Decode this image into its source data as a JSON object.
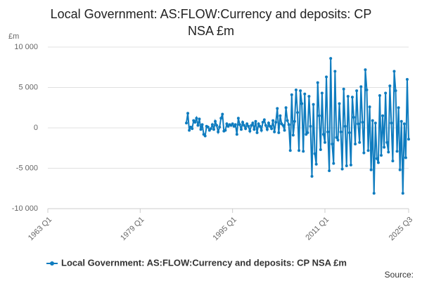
{
  "chart_data": {
    "type": "line",
    "title": "Local Government: AS:FLOW:Currency and deposits: CP NSA £m",
    "y_label": "£m",
    "source": "Source:",
    "categories": [
      "1963 Q1",
      null,
      null,
      null,
      null,
      null,
      null,
      null,
      null,
      null,
      null,
      null,
      null,
      null,
      null,
      null,
      null,
      null,
      null,
      null,
      null,
      null,
      null,
      null,
      null,
      null,
      null,
      null,
      null,
      null,
      null,
      null,
      null,
      null,
      null,
      null,
      null,
      null,
      null,
      null,
      null,
      null,
      null,
      null,
      null,
      null,
      null,
      null,
      null,
      null,
      null,
      null,
      null,
      null,
      null,
      null,
      null,
      null,
      null,
      null,
      null,
      null,
      null,
      null,
      "1979 Q1",
      null,
      null,
      null,
      null,
      null,
      null,
      null,
      null,
      null,
      null,
      null,
      null,
      null,
      null,
      null,
      null,
      null,
      null,
      null,
      null,
      null,
      null,
      null,
      null,
      null,
      null,
      null,
      null,
      null,
      null,
      null,
      null,
      null,
      null,
      null,
      null,
      null,
      null,
      null,
      null,
      null,
      null,
      null,
      null,
      null,
      null,
      null,
      null,
      null,
      null,
      null,
      null,
      null,
      null,
      null,
      null,
      null,
      null,
      null,
      null,
      null,
      null,
      null,
      "1995 Q1",
      null,
      null,
      null,
      null,
      null,
      null,
      null,
      null,
      null,
      null,
      null,
      null,
      null,
      null,
      null,
      null,
      null,
      null,
      null,
      null,
      null,
      null,
      null,
      null,
      null,
      null,
      null,
      null,
      null,
      null,
      null,
      null,
      null,
      null,
      null,
      null,
      null,
      null,
      null,
      null,
      null,
      null,
      null,
      null,
      null,
      null,
      null,
      null,
      null,
      null,
      null,
      null,
      null,
      null,
      null,
      null,
      null,
      null,
      null,
      null,
      null,
      null,
      null,
      "2011 Q1",
      null,
      null,
      null,
      null,
      null,
      null,
      null,
      null,
      null,
      null,
      null,
      null,
      null,
      null,
      null,
      null,
      null,
      null,
      null,
      null,
      null,
      null,
      null,
      null,
      null,
      null,
      null,
      null,
      null,
      null,
      null,
      null,
      null,
      null,
      null,
      null,
      null,
      null,
      null,
      null,
      null,
      null,
      null,
      null,
      null,
      null,
      null,
      null,
      null,
      null,
      null,
      null,
      null,
      null,
      null,
      null,
      null,
      "2025 Q3"
    ],
    "series": [
      {
        "name": "Local Government: AS:FLOW:Currency and deposits: CP NSA £m",
        "color": "#0f7cbf",
        "values": [
          null,
          null,
          null,
          null,
          null,
          null,
          null,
          null,
          null,
          null,
          null,
          null,
          null,
          null,
          null,
          null,
          null,
          null,
          null,
          null,
          null,
          null,
          null,
          null,
          null,
          null,
          null,
          null,
          null,
          null,
          null,
          null,
          null,
          null,
          null,
          null,
          null,
          null,
          null,
          null,
          null,
          null,
          null,
          null,
          null,
          null,
          null,
          null,
          null,
          null,
          null,
          null,
          null,
          null,
          null,
          null,
          null,
          null,
          null,
          null,
          null,
          null,
          null,
          null,
          null,
          null,
          null,
          null,
          null,
          null,
          null,
          null,
          null,
          null,
          null,
          null,
          null,
          null,
          null,
          null,
          null,
          null,
          null,
          null,
          null,
          null,
          null,
          null,
          null,
          null,
          null,
          null,
          null,
          null,
          null,
          null,
          600,
          1800,
          -300,
          100,
          -100,
          900,
          700,
          1200,
          300,
          1100,
          -200,
          400,
          -800,
          -1000,
          200,
          100,
          -300,
          -100,
          400,
          -200,
          800,
          300,
          -500,
          100,
          1200,
          1700,
          -400,
          -300,
          500,
          200,
          400,
          300,
          500,
          200,
          400,
          -800,
          1200,
          400,
          -200,
          700,
          300,
          -100,
          500,
          200,
          -400,
          300,
          600,
          -200,
          800,
          -600,
          500,
          200,
          -300,
          700,
          1000,
          300,
          -200,
          600,
          200,
          -100,
          900,
          -500,
          700,
          2400,
          -600,
          1500,
          500,
          300,
          -300,
          2500,
          900,
          400,
          -2800,
          4100,
          -900,
          800,
          4700,
          1900,
          -2800,
          4600,
          3000,
          -2900,
          4200,
          -800,
          -600,
          3900,
          200,
          -6000,
          2900,
          -3200,
          -4500,
          5600,
          1500,
          -2700,
          4300,
          -800,
          -1800,
          6300,
          -500,
          -5300,
          8600,
          -2000,
          -4400,
          7000,
          -1200,
          -1500,
          3000,
          -500,
          -5100,
          4800,
          200,
          -4700,
          3900,
          -600,
          -4600,
          3800,
          1300,
          -2000,
          4600,
          500,
          -1800,
          5100,
          700,
          -3100,
          7200,
          4700,
          -2800,
          2600,
          -5200,
          900,
          -8100,
          600,
          -3800,
          -4300,
          4000,
          -3400,
          1500,
          -2400,
          4300,
          -1800,
          -3000,
          5200,
          600,
          -4100,
          7000,
          4600,
          -2900,
          2500,
          -5200,
          800,
          -8100,
          500,
          -3700,
          6000,
          -1400
        ]
      }
    ],
    "ylim": [
      -10000,
      10000
    ],
    "yticks": [
      {
        "value": -10000,
        "label": "-10 000"
      },
      {
        "value": -5000,
        "label": "-5 000"
      },
      0,
      {
        "value": 5000,
        "label": "5 000"
      },
      {
        "value": 10000,
        "label": "10 000"
      }
    ],
    "grid": true
  }
}
